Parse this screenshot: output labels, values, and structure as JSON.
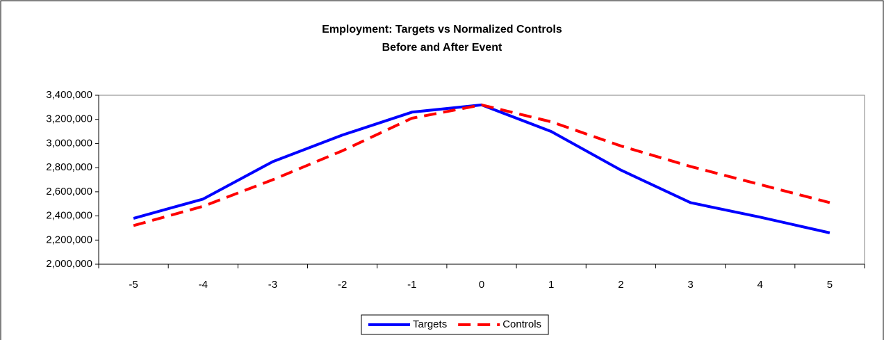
{
  "chart_data": {
    "type": "line",
    "title": "Employment: Targets vs Normalized Controls",
    "subtitle": "Before and After Event",
    "categories": [
      "-5",
      "-4",
      "-3",
      "-2",
      "-1",
      "0",
      "1",
      "2",
      "3",
      "4",
      "5"
    ],
    "series": [
      {
        "name": "Targets",
        "color": "#0000ff",
        "dash": "solid",
        "values": [
          2380000,
          2540000,
          2850000,
          3070000,
          3260000,
          3320000,
          3100000,
          2780000,
          2510000,
          2390000,
          2260000
        ]
      },
      {
        "name": "Controls",
        "color": "#ff0000",
        "dash": "dashed",
        "values": [
          2320000,
          2480000,
          2700000,
          2940000,
          3210000,
          3320000,
          3180000,
          2980000,
          2810000,
          2660000,
          2510000
        ]
      }
    ],
    "ylim": [
      2000000,
      3400000
    ],
    "yticks": [
      {
        "value": 2000000,
        "label": "2,000,000"
      },
      {
        "value": 2200000,
        "label": "2,200,000"
      },
      {
        "value": 2400000,
        "label": "2,400,000"
      },
      {
        "value": 2600000,
        "label": "2,600,000"
      },
      {
        "value": 2800000,
        "label": "2,800,000"
      },
      {
        "value": 3000000,
        "label": "3,000,000"
      },
      {
        "value": 3200000,
        "label": "3,200,000"
      },
      {
        "value": 3400000,
        "label": "3,400,000"
      }
    ],
    "grid": false,
    "legend": "bottom"
  }
}
